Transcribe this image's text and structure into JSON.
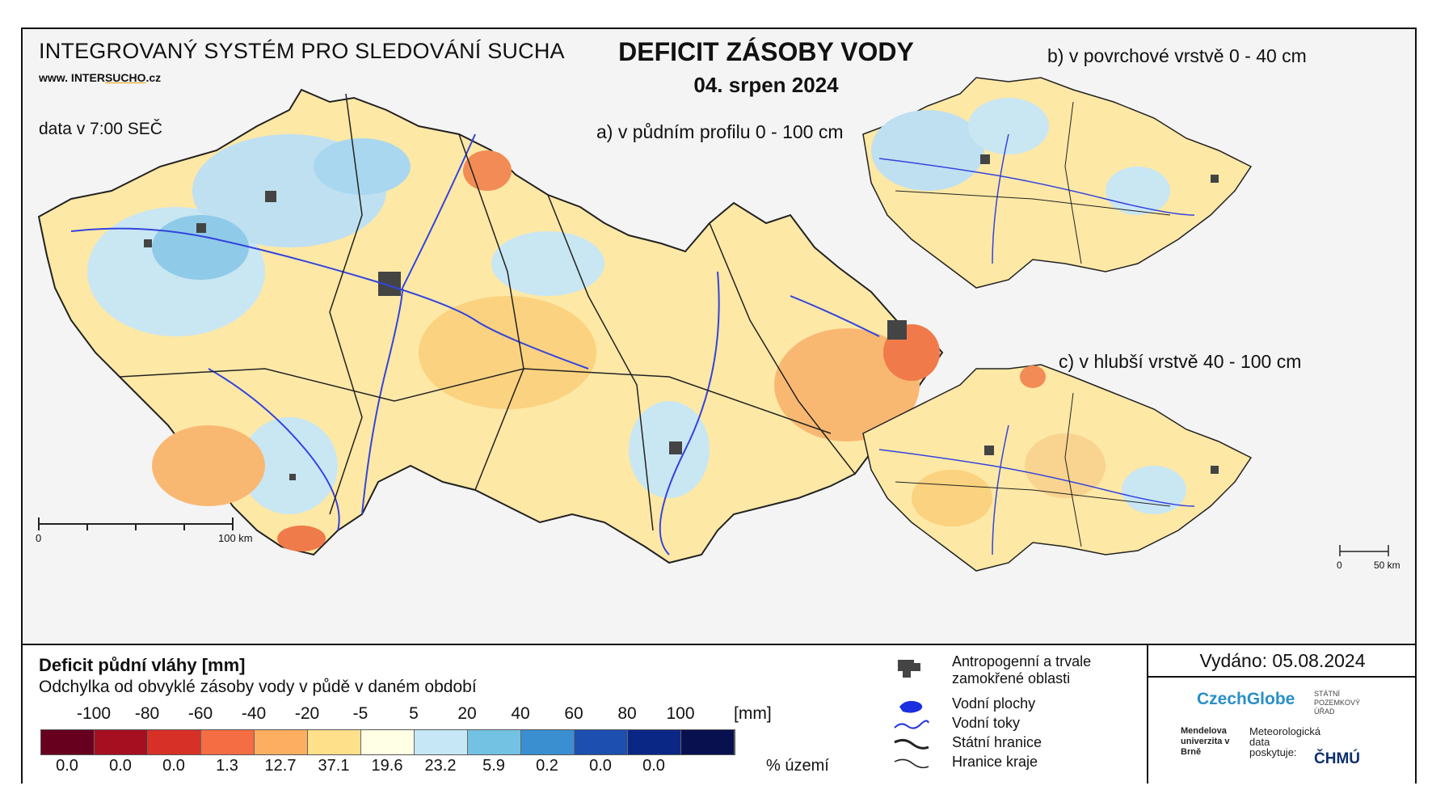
{
  "header": {
    "system_title": "INTEGROVANÝ SYSTÉM PRO SLEDOVÁNÍ SUCHA",
    "website_prefix": "www. INTER",
    "website_mid": "SUCHO",
    "website_suffix": ".cz",
    "data_time": "data v 7:00 SEČ",
    "main_title": "DEFICIT ZÁSOBY VODY",
    "date": "04. srpen 2024"
  },
  "maps": {
    "a_label": "a) v půdním profilu 0 - 100 cm",
    "b_label": "b) v povrchové vrstvě 0 - 40 cm",
    "c_label": "c) v hlubší vrstvě 40 - 100 cm",
    "scale_main_start": "0",
    "scale_main_end": "100 km",
    "scale_small_start": "0",
    "scale_small_end": "50 km"
  },
  "legend": {
    "title": "Deficit půdní vláhy  [mm]",
    "subtitle": "Odchylka od obvyklé zásoby vody v půdě v daném období",
    "ticks": [
      "-100",
      "-80",
      "-60",
      "-40",
      "-20",
      "-5",
      "5",
      "20",
      "40",
      "60",
      "80",
      "100"
    ],
    "unit": "[mm]",
    "colors": [
      "#67001f",
      "#a50f20",
      "#d73027",
      "#f46d43",
      "#fdae61",
      "#fee08b",
      "#ffffe5",
      "#c6e7f5",
      "#74c2e3",
      "#3a8fd0",
      "#1c4fb0",
      "#0b2785",
      "#08104f"
    ],
    "percentages": [
      "0.0",
      "0.0",
      "0.0",
      "1.3",
      "12.7",
      "37.1",
      "19.6",
      "23.2",
      "5.9",
      "0.2",
      "0.0",
      "0.0"
    ],
    "percent_label": "% území"
  },
  "key": {
    "anthropogenic": "Antropogenní a trvale",
    "anthropogenic_2": "zamokřené oblasti",
    "water_bodies": "Vodní plochy",
    "rivers": "Vodní toky",
    "state_border": "Státní hranice",
    "region_border": "Hranice kraje"
  },
  "issued": "Vydáno: 05.08.2024",
  "logos": {
    "czechglobe": "CzechGlobe",
    "spu": "STÁTNÍ POZEMKOVÝ ÚŘAD",
    "mendel": "Mendelova univerzita v Brně",
    "met_text": "Meteorologická data poskytuje:",
    "chmu": "ČHMÚ"
  }
}
